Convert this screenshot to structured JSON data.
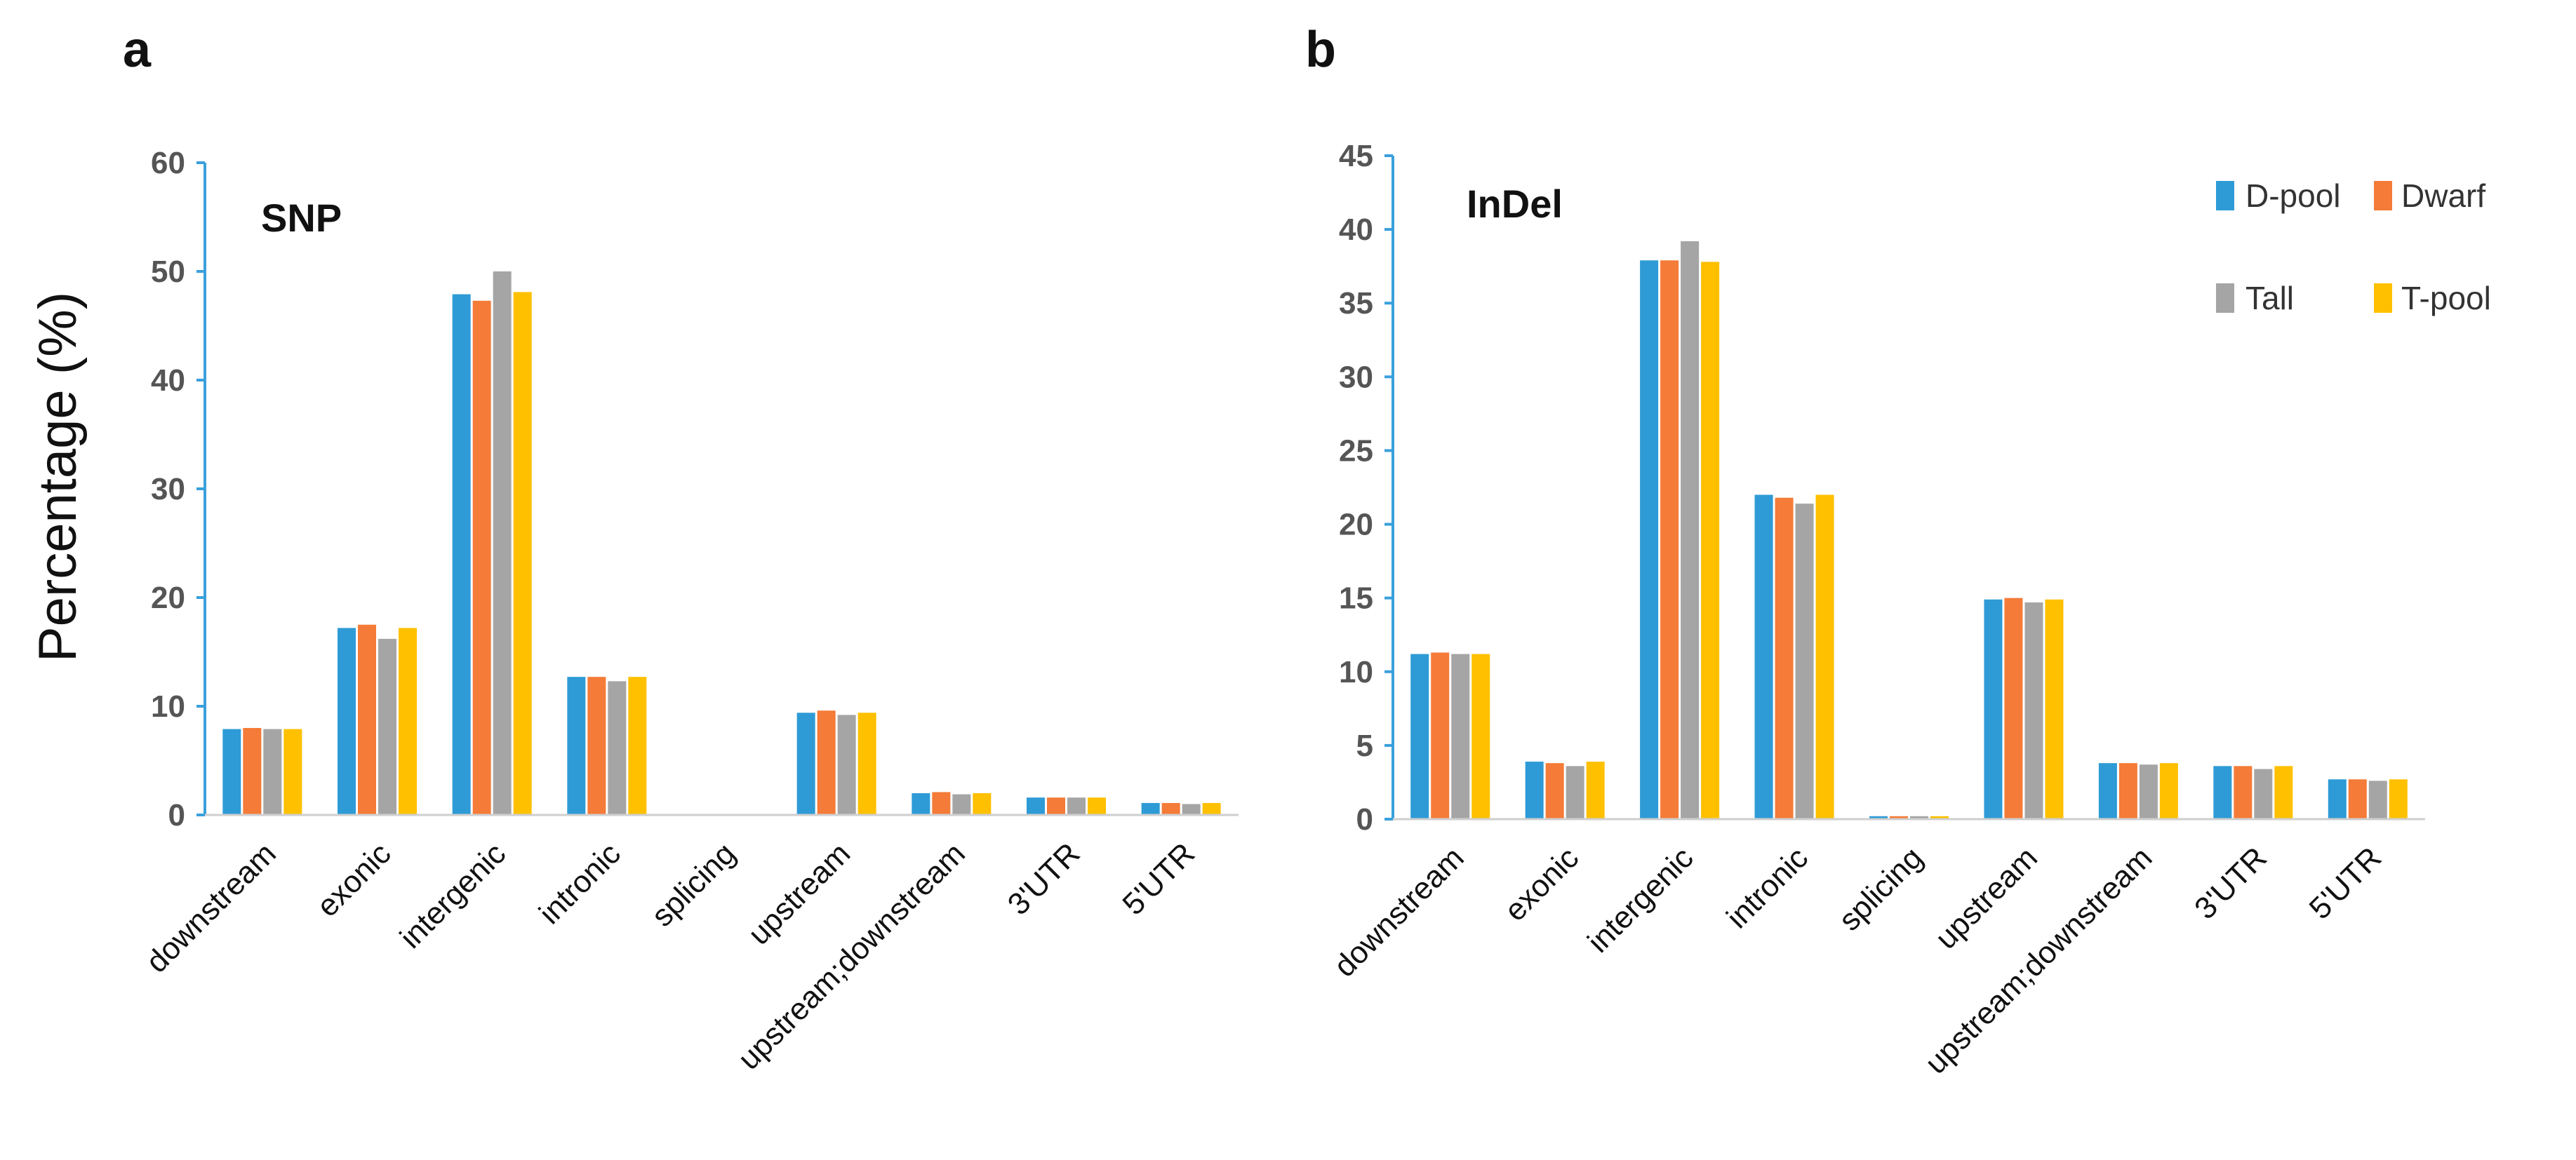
{
  "colors": {
    "D-pool": "#2E9BD6",
    "Dwarf": "#F47B38",
    "Tall": "#A5A5A5",
    "T-pool": "#FFC000",
    "axis": "#3aa0dc"
  },
  "legend": [
    "D-pool",
    "Dwarf",
    "Tall",
    "T-pool"
  ],
  "chart_data": [
    {
      "type": "bar",
      "panel": "a",
      "title": "SNP",
      "ylabel": "Percentage (%)",
      "xlabel": "",
      "ylim": [
        0,
        60
      ],
      "yticks": [
        0,
        10,
        20,
        30,
        40,
        50,
        60
      ],
      "categories": [
        "downstream",
        "exonic",
        "intergenic",
        "intronic",
        "splicing",
        "upstream",
        "upstream;downstream",
        "3'UTR",
        "5'UTR"
      ],
      "series": [
        {
          "name": "D-pool",
          "values": [
            7.9,
            17.2,
            47.9,
            12.7,
            0.05,
            9.4,
            2.0,
            1.6,
            1.1
          ]
        },
        {
          "name": "Dwarf",
          "values": [
            8.0,
            17.5,
            47.3,
            12.7,
            0.05,
            9.6,
            2.1,
            1.6,
            1.1
          ]
        },
        {
          "name": "Tall",
          "values": [
            7.9,
            16.2,
            50.0,
            12.3,
            0.05,
            9.2,
            1.9,
            1.6,
            1.0
          ]
        },
        {
          "name": "T-pool",
          "values": [
            7.9,
            17.2,
            48.1,
            12.7,
            0.05,
            9.4,
            2.0,
            1.6,
            1.1
          ]
        }
      ]
    },
    {
      "type": "bar",
      "panel": "b",
      "title": "InDel",
      "ylabel": "",
      "xlabel": "",
      "ylim": [
        0,
        45
      ],
      "yticks": [
        0,
        5,
        10,
        15,
        20,
        25,
        30,
        35,
        40,
        45
      ],
      "categories": [
        "downstream",
        "exonic",
        "intergenic",
        "intronic",
        "splicing",
        "upstream",
        "upstream;downstream",
        "3'UTR",
        "5'UTR"
      ],
      "legend": [
        "D-pool",
        "Dwarf",
        "Tall",
        "T-pool"
      ],
      "series": [
        {
          "name": "D-pool",
          "values": [
            11.2,
            3.9,
            37.9,
            22.0,
            0.2,
            14.9,
            3.8,
            3.6,
            2.7
          ]
        },
        {
          "name": "Dwarf",
          "values": [
            11.3,
            3.8,
            37.9,
            21.8,
            0.2,
            15.0,
            3.8,
            3.6,
            2.7
          ]
        },
        {
          "name": "Tall",
          "values": [
            11.2,
            3.6,
            39.2,
            21.4,
            0.2,
            14.7,
            3.7,
            3.4,
            2.6
          ]
        },
        {
          "name": "T-pool",
          "values": [
            11.2,
            3.9,
            37.8,
            22.0,
            0.2,
            14.9,
            3.8,
            3.6,
            2.7
          ]
        }
      ]
    }
  ]
}
